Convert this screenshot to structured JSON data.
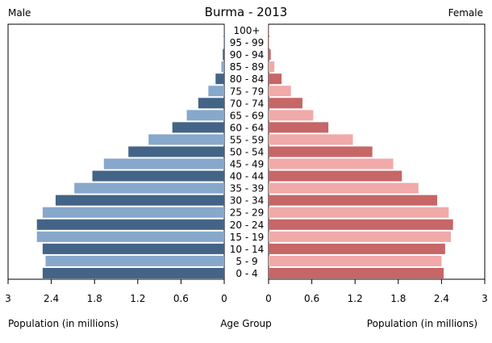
{
  "chart_data": {
    "type": "bar",
    "title": "Burma - 2013",
    "left_label": "Male",
    "right_label": "Female",
    "center_label": "Age Group",
    "xlabel_left": "Population (in millions)",
    "xlabel_right": "Population (in millions)",
    "xlim": [
      0,
      3
    ],
    "ticks_left": [
      "3",
      "2.4",
      "1.8",
      "1.2",
      "0.6",
      "0"
    ],
    "ticks_right": [
      "0",
      "0.6",
      "1.2",
      "1.8",
      "2.4",
      "3"
    ],
    "tick_values": [
      0,
      0.6,
      1.2,
      1.8,
      2.4,
      3
    ],
    "categories": [
      "0 - 4",
      "5 - 9",
      "10 - 14",
      "15 - 19",
      "20 - 24",
      "25 - 29",
      "30 - 34",
      "35 - 39",
      "40 - 44",
      "45 - 49",
      "50 - 54",
      "55 - 59",
      "60 - 64",
      "65 - 69",
      "70 - 74",
      "75 - 79",
      "80 - 84",
      "85 - 89",
      "90 - 94",
      "95 - 99",
      "100+"
    ],
    "series": [
      {
        "name": "Male",
        "values": [
          2.52,
          2.48,
          2.52,
          2.6,
          2.6,
          2.52,
          2.34,
          2.08,
          1.83,
          1.67,
          1.33,
          1.05,
          0.72,
          0.52,
          0.36,
          0.22,
          0.12,
          0.04,
          0.02,
          0.01,
          0.005
        ],
        "colors": [
          "#436487",
          "#87a8cb"
        ]
      },
      {
        "name": "Female",
        "values": [
          2.43,
          2.4,
          2.45,
          2.53,
          2.56,
          2.5,
          2.34,
          2.08,
          1.85,
          1.73,
          1.44,
          1.17,
          0.83,
          0.62,
          0.47,
          0.31,
          0.18,
          0.08,
          0.03,
          0.01,
          0.005
        ],
        "colors": [
          "#c76666",
          "#f1a9a9"
        ]
      }
    ]
  }
}
